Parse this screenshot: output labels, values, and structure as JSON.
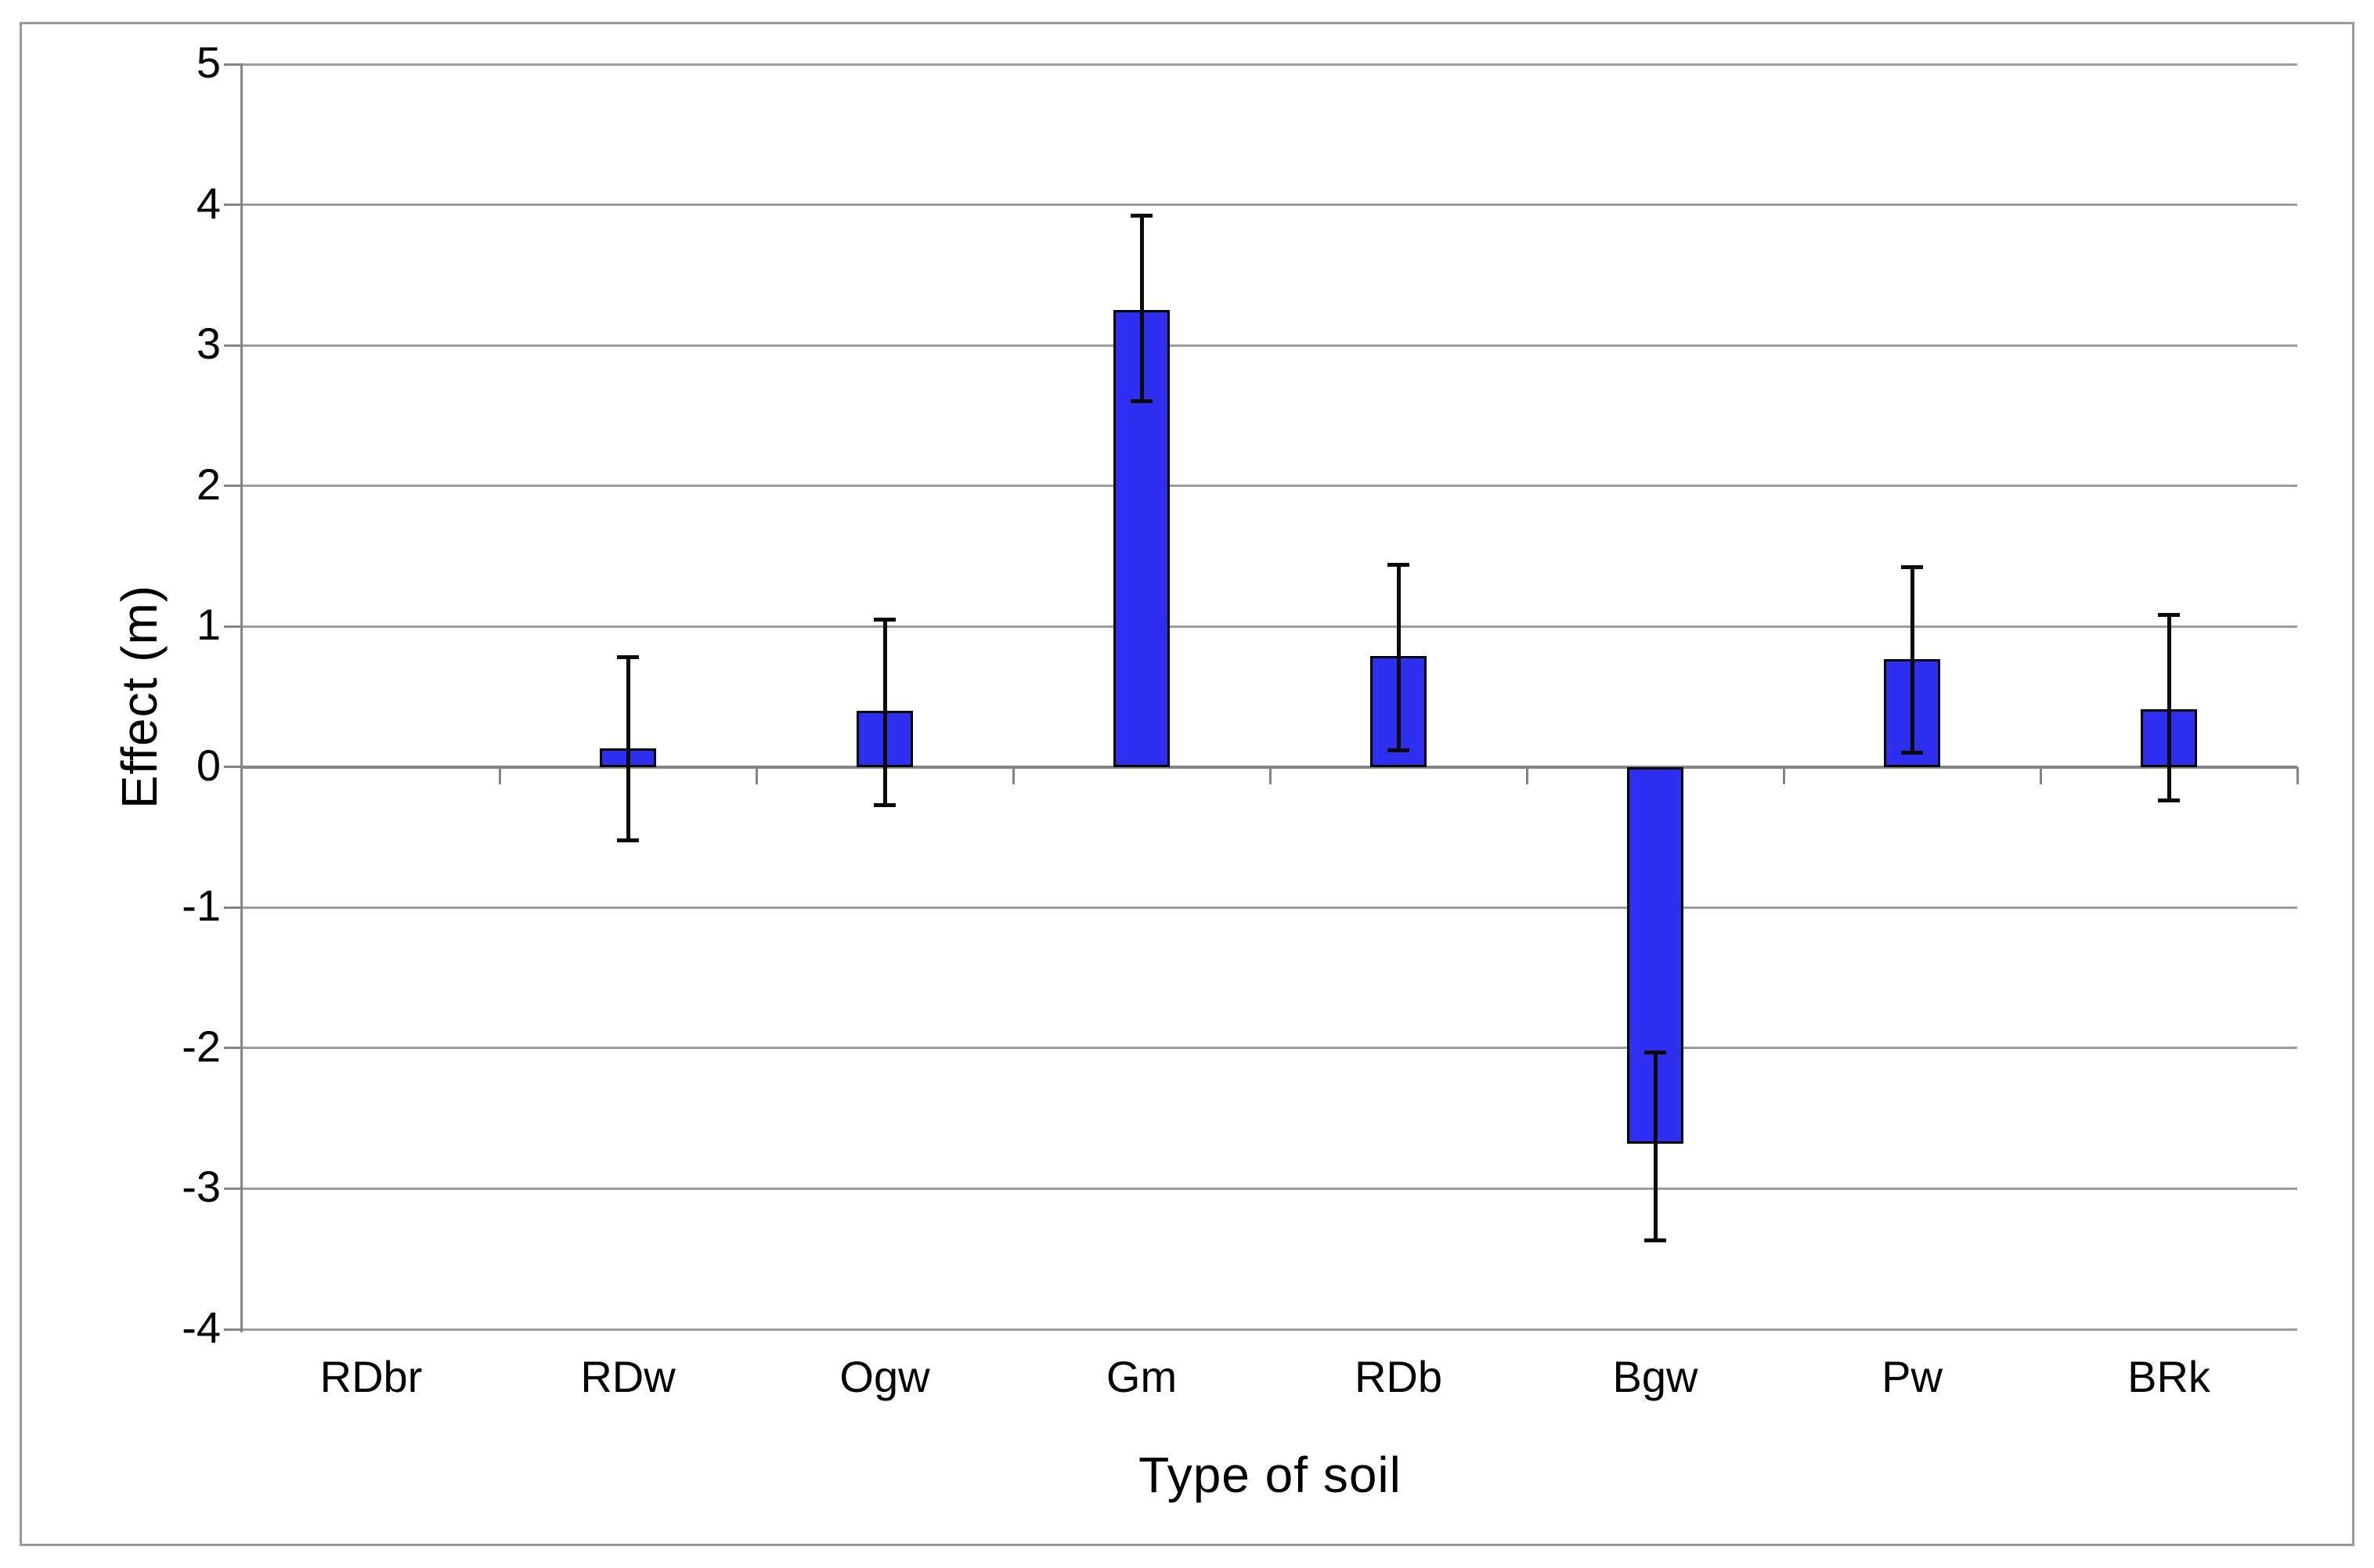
{
  "chart_data": {
    "type": "bar",
    "title": "",
    "xlabel": "Type of soil",
    "ylabel": "Effect (m)",
    "categories": [
      "RDbr",
      "RDw",
      "Ogw",
      "Gm",
      "RDb",
      "Bgw",
      "Pw",
      "BRk"
    ],
    "values": [
      null,
      0.13,
      0.4,
      3.25,
      0.79,
      -2.68,
      0.77,
      0.41
    ],
    "error_high": [
      null,
      0.78,
      1.05,
      3.92,
      1.44,
      -2.03,
      1.42,
      1.08
    ],
    "error_low": [
      null,
      -0.52,
      -0.27,
      2.6,
      0.12,
      -3.37,
      0.1,
      -0.24
    ],
    "ylim": [
      -4,
      5
    ],
    "yticks": [
      5,
      4,
      3,
      2,
      1,
      0,
      -1,
      -2,
      -3,
      -4
    ],
    "grid": "horizontal-major-gridlines",
    "legend": "none",
    "axis_crosses_at": 0,
    "colors": {
      "bar_fill": "#2e2ef0",
      "bar_border": "#000000",
      "error_bar": "#0a0a0a",
      "gridline": "#9d9d9d",
      "axis_line": "#858585",
      "frame_border": "#999999",
      "background": "#ffffff",
      "text": "#000000"
    }
  }
}
